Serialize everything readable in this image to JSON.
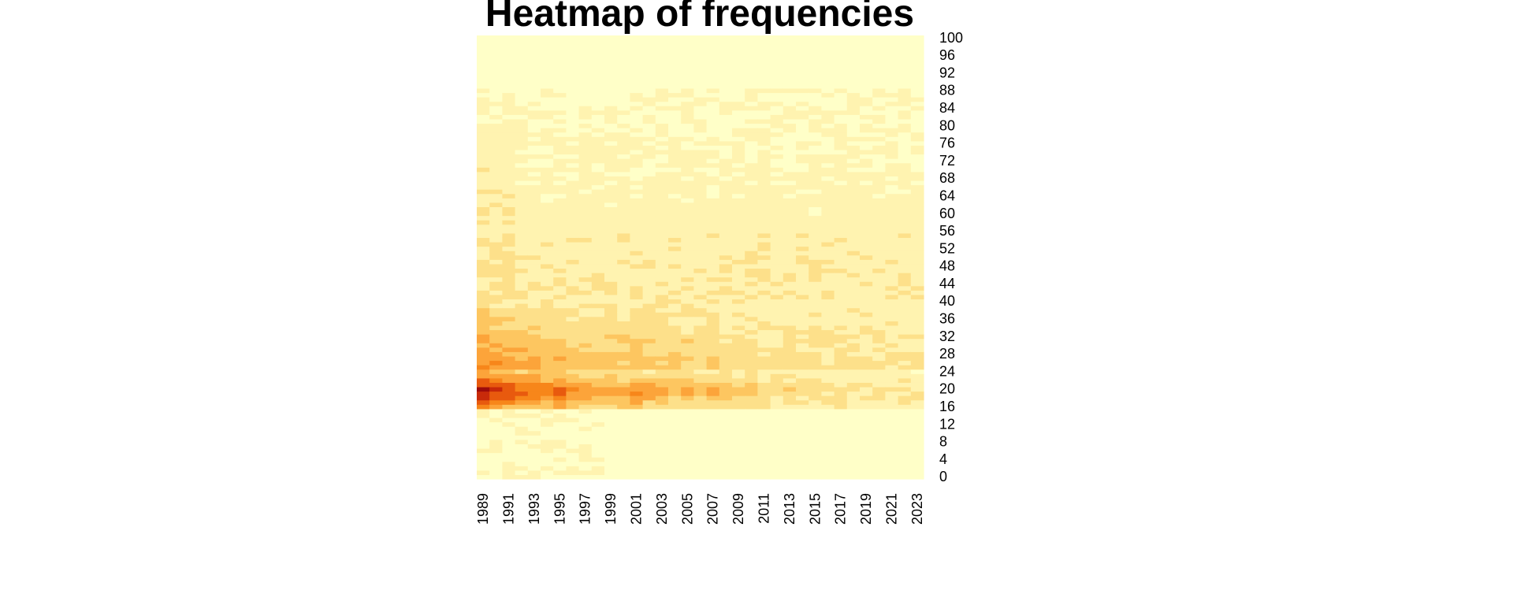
{
  "chart_data": {
    "type": "heatmap",
    "title": "Heatmap of frequencies",
    "xlabel": "",
    "ylabel": "",
    "x_years": [
      1989,
      1990,
      1991,
      1992,
      1993,
      1994,
      1995,
      1996,
      1997,
      1998,
      1999,
      2000,
      2001,
      2002,
      2003,
      2004,
      2005,
      2006,
      2007,
      2008,
      2009,
      2010,
      2011,
      2012,
      2013,
      2014,
      2015,
      2016,
      2017,
      2018,
      2019,
      2020,
      2021,
      2022,
      2023
    ],
    "x_tick_labels": [
      "1989",
      "1991",
      "1993",
      "1995",
      "1997",
      "1999",
      "2001",
      "2003",
      "2005",
      "2007",
      "2009",
      "2011",
      "2013",
      "2015",
      "2017",
      "2019",
      "2021",
      "2023"
    ],
    "y_range": [
      0,
      100
    ],
    "y_tick_labels": [
      "0",
      "4",
      "8",
      "12",
      "16",
      "20",
      "24",
      "28",
      "32",
      "36",
      "40",
      "44",
      "48",
      "52",
      "56",
      "60",
      "64",
      "68",
      "72",
      "76",
      "80",
      "84",
      "88",
      "92",
      "96",
      "100"
    ],
    "color_scale": [
      "#ffffc8",
      "#fff3b0",
      "#fde08a",
      "#fdc660",
      "#fca43a",
      "#f7861a",
      "#e85a0e",
      "#c82a0a",
      "#9c0b0b"
    ],
    "cells_note_values": "intensity per (year, age) estimated from color, 0 = palest, 1 = darkest",
    "peak_intensity_by_year": [
      1.0,
      0.92,
      0.8,
      0.72,
      0.75,
      0.65,
      0.7,
      0.62,
      0.55,
      0.52,
      0.55,
      0.5,
      0.58,
      0.52,
      0.5,
      0.45,
      0.45,
      0.42,
      0.48,
      0.4,
      0.38,
      0.35,
      0.3,
      0.28,
      0.28,
      0.27,
      0.27,
      0.25,
      0.25,
      0.24,
      0.23,
      0.23,
      0.22,
      0.22,
      0.22
    ]
  }
}
